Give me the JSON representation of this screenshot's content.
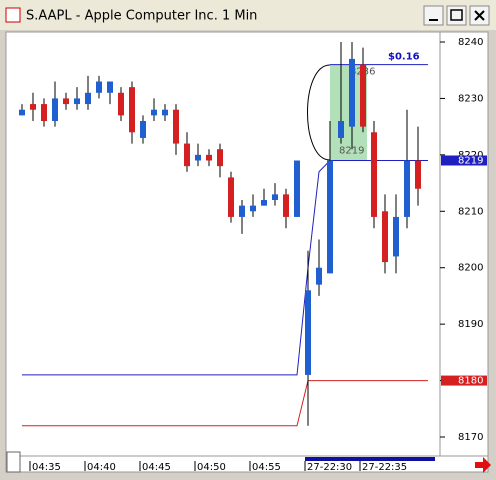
{
  "window_title": "S.AAPL - Apple Computer Inc. 1 Min",
  "chart_data": {
    "type": "candlestick",
    "categories": [
      null,
      "04:35",
      null,
      null,
      null,
      null,
      "04:40",
      null,
      null,
      null,
      null,
      "04:45",
      null,
      null,
      null,
      null,
      "04:50",
      null,
      null,
      null,
      null,
      "04:55",
      null,
      null,
      null,
      null,
      "27-22:30",
      null,
      null,
      null,
      null,
      "27-22:35",
      null,
      null,
      null,
      null,
      null
    ],
    "open": [
      8227,
      8229,
      8229,
      8226,
      8230,
      8229,
      8229,
      8231,
      8231,
      8231,
      8232,
      8223,
      8227,
      8227,
      8228,
      8222,
      8219,
      8220,
      8221,
      8216,
      8209,
      8210,
      8211,
      8212,
      8213,
      8209,
      8181,
      8197,
      8199,
      8223,
      8225,
      8236,
      8224,
      8210,
      8202,
      8209,
      8219
    ],
    "high": [
      8229,
      8231,
      8230,
      8233,
      8231,
      8232,
      8234,
      8234,
      8233,
      8232,
      8233,
      8227,
      8230,
      8229,
      8229,
      8224,
      8222,
      8221,
      8222,
      8217,
      8212,
      8213,
      8214,
      8215,
      8214,
      8219,
      8203,
      8205,
      8226,
      8240,
      8240,
      8239,
      8226,
      8213,
      8213,
      8228,
      8225
    ],
    "low": [
      8227,
      8226,
      8225,
      8225,
      8228,
      8228,
      8228,
      8230,
      8229,
      8226,
      8222,
      8222,
      8226,
      8226,
      8220,
      8217,
      8218,
      8218,
      8216,
      8208,
      8206,
      8209,
      8211,
      8211,
      8207,
      8209,
      8172,
      8195,
      8199,
      8222,
      8221,
      8224,
      8207,
      8199,
      8199,
      8207,
      8211
    ],
    "close": [
      8228,
      8228,
      8226,
      8230,
      8229,
      8230,
      8231,
      8233,
      8233,
      8227,
      8224,
      8226,
      8228,
      8228,
      8222,
      8218,
      8220,
      8219,
      8218,
      8209,
      8211,
      8211,
      8212,
      8213,
      8209,
      8219,
      8196,
      8200,
      8219,
      8226,
      8237,
      8225,
      8209,
      8201,
      8209,
      8219,
      8214
    ],
    "up_color": "#1f5fd0",
    "down_color": "#d42020",
    "overlays": [
      {
        "color": "#2020c0",
        "label": 8219,
        "values": [
          8181,
          8181,
          8181,
          8181,
          8181,
          8181,
          8181,
          8181,
          8181,
          8181,
          8181,
          8181,
          8181,
          8181,
          8181,
          8181,
          8181,
          8181,
          8181,
          8181,
          8181,
          8181,
          8181,
          8181,
          8181,
          8181,
          8200,
          8217,
          8219,
          8219,
          8219,
          8219,
          8219,
          8219,
          8219,
          8219,
          8219
        ]
      },
      {
        "color": "#d42020",
        "label": 8180,
        "values": [
          8172,
          8172,
          8172,
          8172,
          8172,
          8172,
          8172,
          8172,
          8172,
          8172,
          8172,
          8172,
          8172,
          8172,
          8172,
          8172,
          8172,
          8172,
          8172,
          8172,
          8172,
          8172,
          8172,
          8172,
          8172,
          8172,
          8180,
          8180,
          8180,
          8180,
          8180,
          8180,
          8180,
          8180,
          8180,
          8180,
          8180
        ]
      }
    ],
    "box": {
      "high": 8236,
      "low": 8219,
      "change": "$0.16"
    },
    "ylim": [
      8168,
      8242
    ],
    "yticks": [
      8170,
      8180,
      8190,
      8200,
      8210,
      8220,
      8230,
      8240
    ]
  }
}
